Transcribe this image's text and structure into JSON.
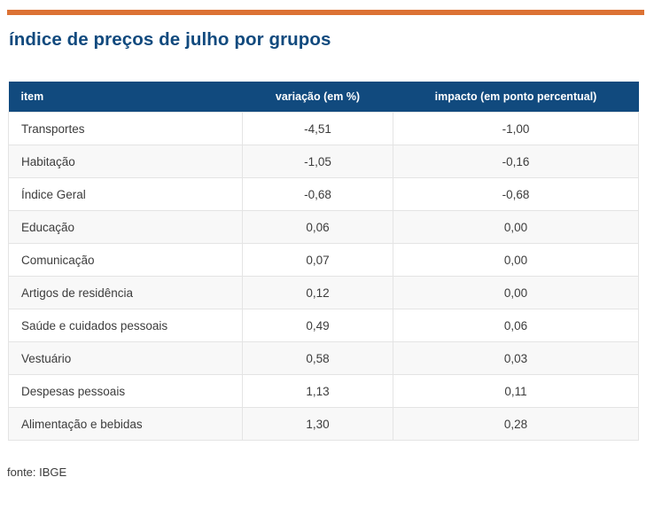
{
  "title": "índice de preços de julho por grupos",
  "colors": {
    "accent_orange": "#dc7234",
    "header_navy": "#114a7e",
    "title_navy": "#114a7e",
    "row_stripe": "#f8f8f8",
    "grid_line": "#e4e4e4",
    "body_text": "#3c3c3c"
  },
  "table": {
    "columns": [
      "item",
      "variação (em %)",
      "impacto (em ponto percentual)"
    ],
    "rows": [
      {
        "item": "Transportes",
        "variacao": "-4,51",
        "impacto": "-1,00"
      },
      {
        "item": "Habitação",
        "variacao": "-1,05",
        "impacto": "-0,16"
      },
      {
        "item": "Índice Geral",
        "variacao": "-0,68",
        "impacto": "-0,68"
      },
      {
        "item": "Educação",
        "variacao": "0,06",
        "impacto": "0,00"
      },
      {
        "item": "Comunicação",
        "variacao": "0,07",
        "impacto": "0,00"
      },
      {
        "item": "Artigos de residência",
        "variacao": "0,12",
        "impacto": "0,00"
      },
      {
        "item": "Saúde e cuidados pessoais",
        "variacao": "0,49",
        "impacto": "0,06"
      },
      {
        "item": "Vestuário",
        "variacao": "0,58",
        "impacto": "0,03"
      },
      {
        "item": "Despesas pessoais",
        "variacao": "1,13",
        "impacto": "0,11"
      },
      {
        "item": "Alimentação e bebidas",
        "variacao": "1,30",
        "impacto": "0,28"
      }
    ]
  },
  "footer": {
    "source": "fonte: IBGE"
  },
  "chart_data": {
    "type": "table",
    "title": "índice de preços de julho por grupos",
    "columns": [
      "item",
      "variação (em %)",
      "impacto (em ponto percentual)"
    ],
    "rows": [
      [
        "Transportes",
        -4.51,
        -1.0
      ],
      [
        "Habitação",
        -1.05,
        -0.16
      ],
      [
        "Índice Geral",
        -0.68,
        -0.68
      ],
      [
        "Educação",
        0.06,
        0.0
      ],
      [
        "Comunicação",
        0.07,
        0.0
      ],
      [
        "Artigos de residência",
        0.12,
        0.0
      ],
      [
        "Saúde e cuidados pessoais",
        0.49,
        0.06
      ],
      [
        "Vestuário",
        0.58,
        0.03
      ],
      [
        "Despesas pessoais",
        1.13,
        0.11
      ],
      [
        "Alimentação e bebidas",
        1.3,
        0.28
      ]
    ],
    "decimal_separator": ",",
    "source": "fonte: IBGE",
    "layout": {
      "zebra_striping": true,
      "header_background": "#114a7e",
      "grid": true
    }
  }
}
